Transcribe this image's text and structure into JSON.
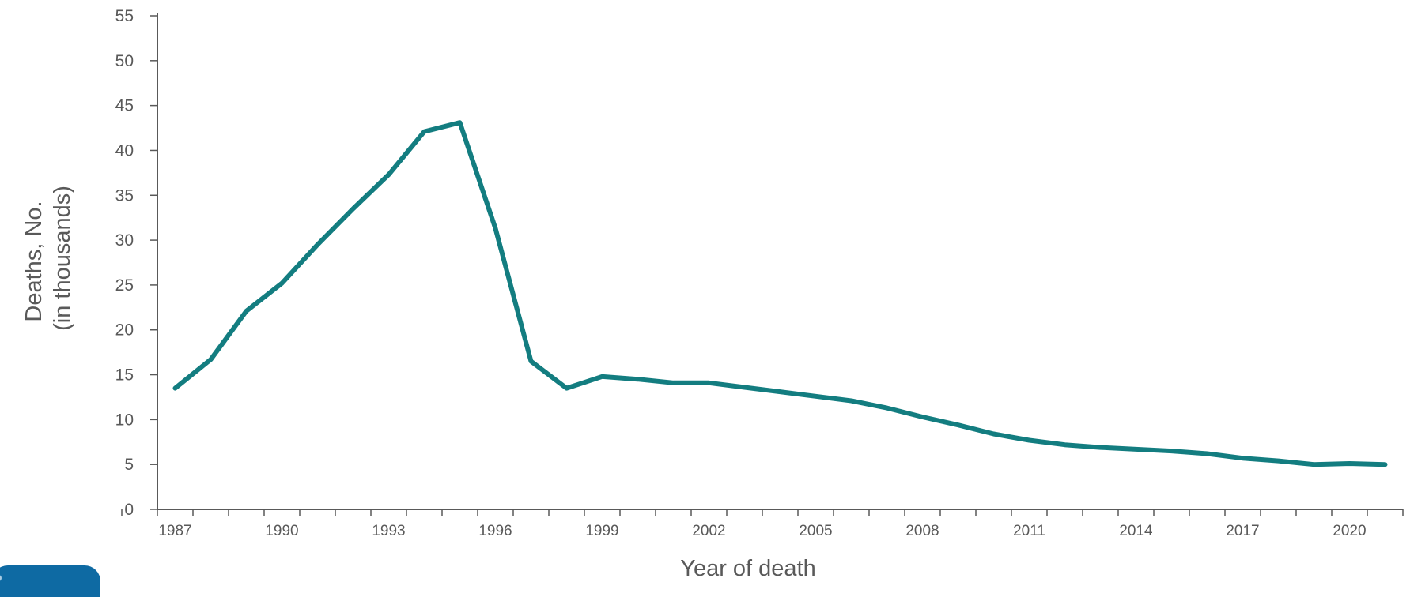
{
  "chart_data": {
    "type": "line",
    "xlabel": "Year of death",
    "ylabel_lines": [
      "Deaths, No.",
      "(in thousands)"
    ],
    "ylim": [
      0,
      55
    ],
    "yticks": [
      0,
      5,
      10,
      15,
      20,
      25,
      30,
      35,
      40,
      45,
      50,
      55
    ],
    "xlim": [
      1986.5,
      2021.5
    ],
    "xtick_labels": [
      1987,
      1990,
      1993,
      1996,
      1999,
      2002,
      2005,
      2008,
      2011,
      2014,
      2017,
      2020
    ],
    "grid": false,
    "series": [
      {
        "color": "#137d80",
        "x": [
          1987,
          1988,
          1989,
          1990,
          1991,
          1992,
          1993,
          1994,
          1995,
          1996,
          1997,
          1998,
          1999,
          2000,
          2001,
          2002,
          2003,
          2004,
          2005,
          2006,
          2007,
          2008,
          2009,
          2010,
          2011,
          2012,
          2013,
          2014,
          2015,
          2016,
          2017,
          2018,
          2019,
          2020,
          2021
        ],
        "values": [
          13.5,
          16.7,
          22.1,
          25.2,
          29.5,
          33.5,
          37.3,
          42.1,
          43.1,
          31.3,
          16.5,
          13.5,
          14.8,
          14.5,
          14.1,
          14.1,
          13.6,
          13.1,
          12.6,
          12.1,
          11.3,
          10.3,
          9.4,
          8.4,
          7.7,
          7.2,
          6.9,
          6.7,
          6.5,
          6.2,
          5.7,
          5.4,
          5.0,
          5.1,
          5.0
        ]
      }
    ]
  },
  "logo": {
    "text": ""
  }
}
